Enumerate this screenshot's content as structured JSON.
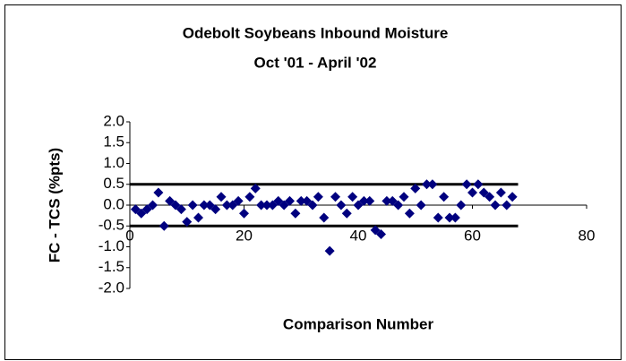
{
  "chart_data": {
    "type": "scatter",
    "title": "Odebolt Soybeans Inbound Moisture",
    "subtitle": "Oct '01 - April '02",
    "x_label": "Comparison Number",
    "y_label": "FC - TCS (%pts)",
    "color": "#00007f",
    "x": [
      1,
      2,
      3,
      4,
      5,
      6,
      7,
      8,
      9,
      10,
      11,
      12,
      13,
      14,
      15,
      16,
      17,
      18,
      19,
      20,
      21,
      22,
      23,
      24,
      25,
      26,
      27,
      28,
      29,
      30,
      31,
      32,
      33,
      34,
      35,
      36,
      37,
      38,
      39,
      40,
      41,
      42,
      43,
      44,
      45,
      46,
      47,
      48,
      49,
      50,
      51,
      52,
      53,
      54,
      55,
      56,
      57,
      58,
      59,
      60,
      61,
      62,
      63,
      64,
      65,
      66,
      67
    ],
    "values": [
      -0.1,
      -0.2,
      -0.1,
      0.0,
      0.3,
      -0.5,
      0.1,
      0.0,
      -0.1,
      -0.4,
      0.0,
      -0.3,
      0.0,
      0.0,
      -0.1,
      0.2,
      0.0,
      0.0,
      0.1,
      -0.2,
      0.2,
      0.4,
      0.0,
      0.0,
      0.0,
      0.1,
      0.0,
      0.1,
      -0.2,
      0.1,
      0.1,
      0.0,
      0.2,
      -0.3,
      -1.1,
      0.2,
      0.0,
      -0.2,
      0.2,
      0.0,
      0.1,
      0.1,
      -0.6,
      -0.7,
      0.1,
      0.1,
      0.0,
      0.2,
      -0.2,
      0.4,
      0.0,
      0.5,
      0.5,
      -0.3,
      0.2,
      -0.3,
      -0.3,
      0.0,
      0.5,
      0.3,
      0.5,
      0.3,
      0.2,
      0.0,
      0.3,
      0.0,
      0.2
    ],
    "limit_lines": [
      {
        "y": 0.5,
        "x": [
          0,
          68
        ]
      },
      {
        "y": -0.5,
        "x": [
          0,
          68
        ]
      }
    ],
    "xlim": [
      0,
      80
    ],
    "xticks": [
      0,
      20,
      40,
      60,
      80
    ],
    "ylim": [
      -2,
      2
    ],
    "yticks": [
      {
        "value": -2,
        "label": "-2.0"
      },
      {
        "value": -1.5,
        "label": "-1.5"
      },
      {
        "value": -1,
        "label": "-1.0"
      },
      {
        "value": -0.5,
        "label": "-0.5"
      },
      {
        "value": 0,
        "label": "0.0"
      },
      {
        "value": 0.5,
        "label": "0.5"
      },
      {
        "value": 1,
        "label": "1.0"
      },
      {
        "value": 1.5,
        "label": "1.5"
      },
      {
        "value": 2,
        "label": "2.0"
      }
    ]
  }
}
